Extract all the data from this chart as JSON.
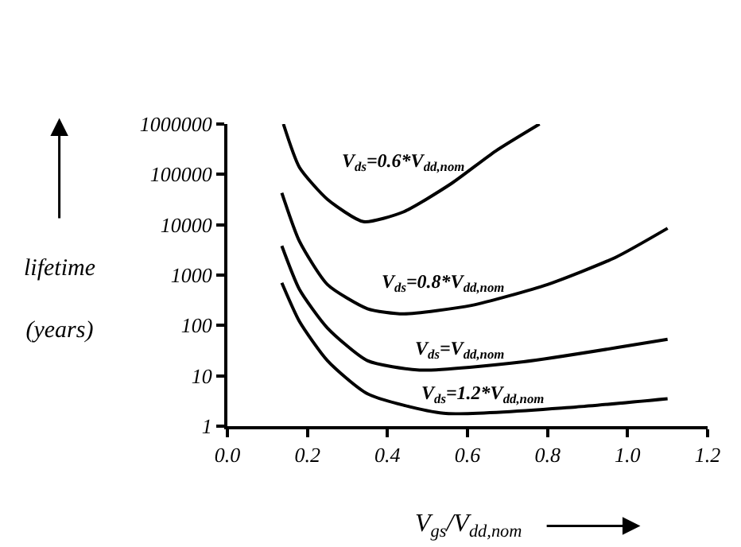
{
  "chart_data": {
    "type": "line",
    "xlabel": "V$_{gs}$/V$_{dd,nom}$",
    "ylabel": "lifetime (years)",
    "log": "y",
    "legend": false,
    "marker": "none",
    "line_style": "solid",
    "xlim": [
      0,
      1.2
    ],
    "ylim": [
      1,
      1000000
    ],
    "xticks": [
      {
        "value": 0,
        "label": "0.0"
      },
      0.2,
      0.4,
      0.6,
      0.8,
      {
        "value": 1,
        "label": "1.0"
      },
      1.2
    ],
    "yticks": [
      1,
      10,
      100,
      1000,
      10000,
      100000,
      1000000
    ],
    "series": [
      {
        "name": "V$_{ds}$=0.6*V$_{dd,nom}$",
        "color": "#000000",
        "x": [
          0.14,
          0.18,
          0.25,
          0.34,
          0.44,
          0.56,
          0.67,
          0.78
        ],
        "values": [
          1000000,
          138000,
          32000,
          11500,
          18000,
          66000,
          290000,
          1000000
        ]
      },
      {
        "name": "V$_{ds}$=0.8*V$_{dd,nom}$",
        "color": "#000000",
        "x": [
          0.136,
          0.18,
          0.25,
          0.35,
          0.44,
          0.61,
          0.8,
          0.97,
          1.1
        ],
        "values": [
          43000,
          4700,
          650,
          215,
          170,
          250,
          650,
          2250,
          8500
        ]
      },
      {
        "name": "V$_{ds}$=V$_{dd,nom}$",
        "color": "#000000",
        "x": [
          0.136,
          0.18,
          0.25,
          0.35,
          0.48,
          0.74,
          1.1
        ],
        "values": [
          3800,
          520,
          89,
          20,
          13,
          19,
          53
        ]
      },
      {
        "name": "V$_{ds}$=1.2*V$_{dd,nom}$",
        "color": "#000000",
        "x": [
          0.136,
          0.18,
          0.25,
          0.35,
          0.54,
          0.87,
          1.1
        ],
        "values": [
          700,
          120,
          20,
          4.4,
          1.8,
          2.4,
          3.5
        ]
      }
    ]
  }
}
